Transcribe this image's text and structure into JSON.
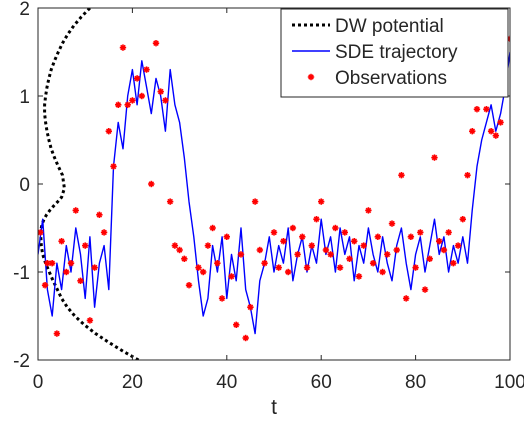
{
  "chart_data": {
    "type": "line",
    "xlabel": "t",
    "ylabel": "",
    "xlim": [
      0,
      100
    ],
    "ylim": [
      -2,
      2
    ],
    "xticks": [
      "0",
      "20",
      "40",
      "60",
      "80",
      "100"
    ],
    "yticks": [
      "-2",
      "-1",
      "0",
      "1",
      "2"
    ],
    "grid": false,
    "legend_position": "top-right",
    "series": [
      {
        "name": "DW potential",
        "style": "dotted",
        "color": "#000000",
        "x": [
          21.3,
          18.0,
          15.0,
          12.2,
          9.8,
          7.8,
          6.2,
          5.0,
          4.1,
          3.2,
          2.4,
          1.6,
          1.0,
          0.7,
          0.6,
          0.7,
          0.9,
          1.3,
          1.8,
          2.5,
          3.3,
          4.2,
          5.0,
          5.6,
          5.2,
          4.3,
          3.5,
          2.8,
          2.3,
          1.9,
          1.6,
          1.4,
          1.4,
          1.6,
          1.9,
          2.3,
          2.8,
          3.5,
          4.3,
          5.2,
          6.3,
          7.6,
          9.2,
          11.0,
          13.0,
          15.2,
          17.7,
          20.4
        ],
        "y": [
          -2.0,
          -1.9,
          -1.8,
          -1.7,
          -1.6,
          -1.5,
          -1.4,
          -1.3,
          -1.2,
          -1.1,
          -1.0,
          -0.9,
          -0.8,
          -0.7,
          -0.6,
          -0.5,
          -0.45,
          -0.4,
          -0.35,
          -0.3,
          -0.25,
          -0.2,
          -0.15,
          -0.05,
          0.1,
          0.2,
          0.3,
          0.4,
          0.5,
          0.6,
          0.7,
          0.8,
          0.9,
          1.0,
          1.1,
          1.2,
          1.3,
          1.4,
          1.5,
          1.6,
          1.7,
          1.8,
          1.9,
          2.0,
          2.1,
          2.2,
          2.3,
          2.4
        ]
      },
      {
        "name": "SDE trajectory",
        "style": "solid",
        "color": "#0000ff",
        "x": [
          0,
          1,
          2,
          3,
          4,
          5,
          6,
          7,
          8,
          9,
          10,
          11,
          12,
          13,
          14,
          15,
          16,
          17,
          18,
          19,
          20,
          21,
          22,
          23,
          24,
          25,
          26,
          27,
          28,
          29,
          30,
          31,
          32,
          33,
          34,
          35,
          36,
          37,
          38,
          39,
          40,
          41,
          42,
          43,
          44,
          45,
          46,
          47,
          48,
          49,
          50,
          51,
          52,
          53,
          54,
          55,
          56,
          57,
          58,
          59,
          60,
          61,
          62,
          63,
          64,
          65,
          66,
          67,
          68,
          69,
          70,
          71,
          72,
          73,
          74,
          75,
          76,
          77,
          78,
          79,
          80,
          81,
          82,
          83,
          84,
          85,
          86,
          87,
          88,
          89,
          90,
          91,
          92,
          93,
          94,
          95,
          96,
          97,
          98,
          99,
          100
        ],
        "y": [
          -0.8,
          -0.4,
          -1.2,
          -1.5,
          -0.9,
          -1.2,
          -0.7,
          -1.0,
          -0.5,
          -0.8,
          -1.3,
          -0.6,
          -1.4,
          -0.9,
          -0.7,
          -1.2,
          0.2,
          0.7,
          0.4,
          1.0,
          1.3,
          0.9,
          1.4,
          1.1,
          0.8,
          1.2,
          1.0,
          0.6,
          1.3,
          0.9,
          0.7,
          0.3,
          -0.2,
          -0.6,
          -1.1,
          -1.5,
          -1.3,
          -0.7,
          -1.0,
          -0.6,
          -1.3,
          -0.8,
          -1.1,
          -0.5,
          -1.2,
          -1.4,
          -1.7,
          -1.1,
          -0.9,
          -0.6,
          -1.0,
          -0.7,
          -0.9,
          -0.5,
          -1.1,
          -0.8,
          -0.6,
          -1.0,
          -0.7,
          -0.9,
          -0.4,
          -0.8,
          -0.6,
          -1.0,
          -0.5,
          -0.8,
          -0.6,
          -1.1,
          -0.7,
          -0.9,
          -0.5,
          -0.8,
          -1.0,
          -0.6,
          -0.9,
          -1.1,
          -0.7,
          -0.5,
          -0.9,
          -1.2,
          -0.8,
          -0.6,
          -1.0,
          -0.7,
          -0.4,
          -0.8,
          -0.6,
          -1.0,
          -0.7,
          -0.9,
          -0.6,
          -0.9,
          -0.3,
          0.2,
          0.5,
          0.7,
          0.9,
          0.6,
          0.8,
          1.1,
          1.5
        ]
      },
      {
        "name": "Observations",
        "style": "markers",
        "color": "#ff0000",
        "x": [
          0.5,
          1.5,
          2,
          3,
          4,
          5,
          6,
          7,
          8,
          9,
          10,
          11,
          12,
          13,
          14,
          15,
          16,
          17,
          18,
          19,
          20,
          21,
          22,
          23,
          24,
          25,
          26,
          27,
          28,
          29,
          30,
          31,
          32,
          34,
          35,
          36,
          37,
          38,
          39,
          40,
          41,
          42,
          43,
          44,
          45,
          46,
          47,
          48,
          50,
          51,
          52,
          53,
          54,
          55,
          56,
          57,
          58,
          59,
          60,
          61,
          62,
          63,
          64,
          65,
          66,
          67,
          68,
          69,
          70,
          71,
          72,
          73,
          74,
          75,
          76,
          77,
          78,
          79,
          80,
          81,
          82,
          83,
          84,
          85,
          86,
          87,
          88,
          89,
          90,
          91,
          92,
          93,
          94,
          95,
          96,
          97,
          98,
          99,
          100
        ],
        "y": [
          -0.55,
          -1.15,
          -0.9,
          -0.9,
          -1.7,
          -0.65,
          -1.0,
          -0.9,
          -0.3,
          -1.1,
          -0.7,
          -1.55,
          -0.95,
          -0.35,
          -0.55,
          0.6,
          0.2,
          0.9,
          1.55,
          0.9,
          0.95,
          1.2,
          1.0,
          1.3,
          0.0,
          1.6,
          1.05,
          0.95,
          -0.2,
          -0.7,
          -0.75,
          -0.85,
          -1.15,
          -0.95,
          -1.0,
          -0.7,
          -0.5,
          -0.9,
          -1.3,
          -0.6,
          -1.05,
          -1.6,
          -0.8,
          -1.75,
          -1.4,
          -0.2,
          -0.75,
          -0.9,
          -0.55,
          -0.95,
          -0.65,
          -1.0,
          -0.5,
          -0.8,
          -0.6,
          -0.95,
          -0.7,
          -0.4,
          -0.2,
          -0.75,
          -0.8,
          -0.5,
          -0.95,
          -0.55,
          -0.85,
          -0.65,
          -1.05,
          -0.7,
          -0.3,
          -0.9,
          -0.6,
          -1.0,
          -0.8,
          -0.45,
          -0.75,
          0.1,
          -1.3,
          -0.6,
          -0.95,
          -0.55,
          -1.2,
          -0.85,
          0.3,
          -0.65,
          -0.75,
          -0.55,
          -0.9,
          -0.7,
          -0.4,
          0.1,
          0.6,
          0.85,
          1.25,
          0.85,
          0.6,
          0.55,
          0.7,
          1.05,
          1.65
        ]
      }
    ]
  }
}
